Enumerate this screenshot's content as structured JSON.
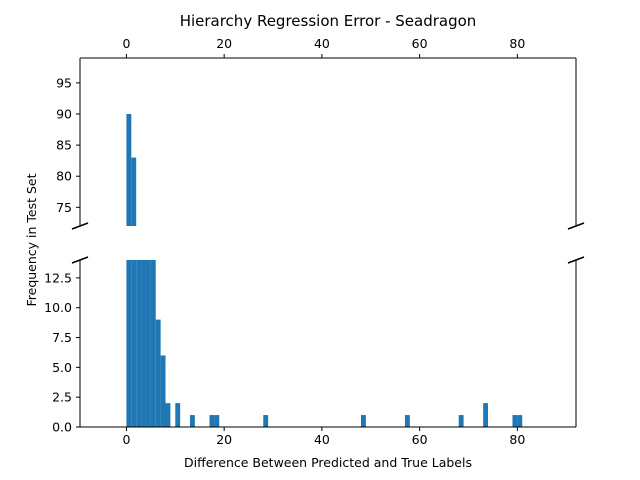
{
  "chart_data": {
    "type": "bar",
    "title": "Hierarchy Regression Error - Seadragon",
    "xlabel": "Difference Between Predicted and True Labels",
    "ylabel": "Frequency in Test Set",
    "xlim": [
      -9.5,
      92
    ],
    "x_ticks": [
      0,
      20,
      40,
      60,
      80
    ],
    "x_tick_labels": [
      "0",
      "20",
      "40",
      "60",
      "80"
    ],
    "broken_y_axis": true,
    "upper_panel": {
      "ylim": [
        72,
        99
      ],
      "y_ticks": [
        75,
        80,
        85,
        90,
        95
      ],
      "y_tick_labels": [
        "75",
        "80",
        "85",
        "90",
        "95"
      ]
    },
    "lower_panel": {
      "ylim": [
        0,
        14
      ],
      "y_ticks": [
        0,
        2.5,
        5,
        7.5,
        10,
        12.5
      ],
      "y_tick_labels": [
        "0.0",
        "2.5",
        "5.0",
        "7.5",
        "10.0",
        "12.5"
      ]
    },
    "bar_color": "#1f77b4",
    "bin_width": 1,
    "bins": [
      {
        "x": 0,
        "value": 90
      },
      {
        "x": 1,
        "value": 83
      },
      {
        "x": 2,
        "value": 40
      },
      {
        "x": 3,
        "value": 30
      },
      {
        "x": 4,
        "value": 25
      },
      {
        "x": 5,
        "value": 20
      },
      {
        "x": 6,
        "value": 9
      },
      {
        "x": 7,
        "value": 6
      },
      {
        "x": 8,
        "value": 2
      },
      {
        "x": 10,
        "value": 2
      },
      {
        "x": 13,
        "value": 1
      },
      {
        "x": 17,
        "value": 1
      },
      {
        "x": 18,
        "value": 1
      },
      {
        "x": 28,
        "value": 1
      },
      {
        "x": 48,
        "value": 1
      },
      {
        "x": 57,
        "value": 1
      },
      {
        "x": 68,
        "value": 1
      },
      {
        "x": 73,
        "value": 2
      },
      {
        "x": 79,
        "value": 1
      },
      {
        "x": 80,
        "value": 1
      }
    ]
  }
}
